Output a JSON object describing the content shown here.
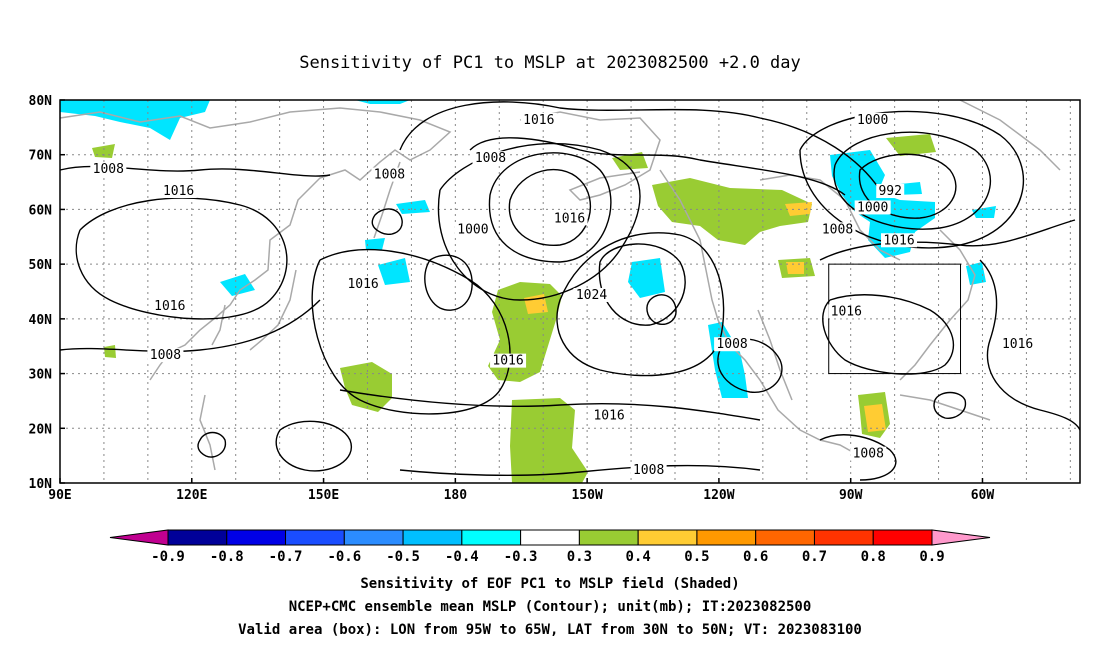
{
  "title": "Sensitivity of PC1 to MSLP at 2023082500 +2.0 day",
  "lat_labels": [
    "80N",
    "70N",
    "60N",
    "50N",
    "40N",
    "30N",
    "20N",
    "10N"
  ],
  "lon_labels": [
    "90E",
    "120E",
    "150E",
    "180",
    "150W",
    "120W",
    "90W",
    "60W"
  ],
  "contour_labels": [
    {
      "text": "1016",
      "lon": -161,
      "lat": 76
    },
    {
      "text": "1008",
      "lon": -172,
      "lat": 69
    },
    {
      "text": "1008",
      "lon": 165,
      "lat": 66
    },
    {
      "text": "1008",
      "lon": 101,
      "lat": 67
    },
    {
      "text": "1016",
      "lon": 117,
      "lat": 63
    },
    {
      "text": "1000",
      "lon": -176,
      "lat": 56
    },
    {
      "text": "1016",
      "lon": -154,
      "lat": 58
    },
    {
      "text": "1000",
      "lon": -85,
      "lat": 76
    },
    {
      "text": "992",
      "lon": -81,
      "lat": 63
    },
    {
      "text": "1000",
      "lon": -85,
      "lat": 60
    },
    {
      "text": "1008",
      "lon": -93,
      "lat": 56
    },
    {
      "text": "1016",
      "lon": -79,
      "lat": 54
    },
    {
      "text": "1016",
      "lon": 159,
      "lat": 46
    },
    {
      "text": "1016",
      "lon": 115,
      "lat": 42
    },
    {
      "text": "1024",
      "lon": -149,
      "lat": 44
    },
    {
      "text": "1016",
      "lon": -91,
      "lat": 41
    },
    {
      "text": "1016",
      "lon": -52,
      "lat": 35
    },
    {
      "text": "1008",
      "lon": 114,
      "lat": 33
    },
    {
      "text": "1016",
      "lon": -168,
      "lat": 32
    },
    {
      "text": "1008",
      "lon": -117,
      "lat": 35
    },
    {
      "text": "1016",
      "lon": -145,
      "lat": 22
    },
    {
      "text": "1008",
      "lon": -136,
      "lat": 12
    },
    {
      "text": "1008",
      "lon": -86,
      "lat": 15
    }
  ],
  "colorbar": {
    "labels": [
      "-0.9",
      "-0.8",
      "-0.7",
      "-0.6",
      "-0.5",
      "-0.4",
      "-0.3",
      "0.3",
      "0.4",
      "0.5",
      "0.6",
      "0.7",
      "0.8",
      "0.9"
    ],
    "colors": [
      "#c00090",
      "#000099",
      "#0000e6",
      "#1a4dff",
      "#2b8cff",
      "#00bfff",
      "#00ffff",
      "#ffffff",
      "#99cc33",
      "#ffcc33",
      "#ff9900",
      "#ff6600",
      "#ff3300",
      "#ff0000",
      "#ff99cc"
    ]
  },
  "valid_box": {
    "lon_west": -95,
    "lon_east": -65,
    "lat_south": 30,
    "lat_north": 50
  },
  "captions": [
    "Sensitivity of EOF PC1 to MSLP field (Shaded)",
    "NCEP+CMC ensemble mean MSLP (Contour); unit(mb); IT:2023082500",
    "Valid area (box): LON from 95W to 65W, LAT from 30N to 50N; VT: 2023083100"
  ],
  "colors": {
    "land": "#a9a9a9",
    "grid": "#888888",
    "contour": "#000000",
    "positive": "#99cc33",
    "positive_high": "#ffcc33",
    "negative": "#00e5ff"
  }
}
